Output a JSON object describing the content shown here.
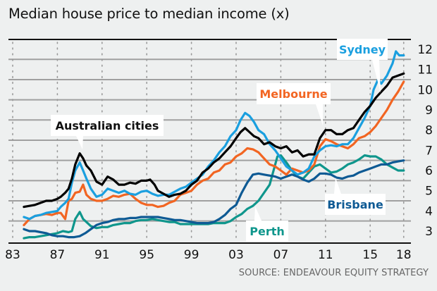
{
  "chart_data": {
    "type": "line",
    "title": "Median house price to median income (x)",
    "xlabel": "",
    "ylabel": "",
    "xlim": [
      1983,
      2018.5
    ],
    "ylim": [
      2.4,
      12.5
    ],
    "grid": true,
    "x_tick_labels": [
      {
        "value": 1983,
        "label": "83"
      },
      {
        "value": 1987,
        "label": "87"
      },
      {
        "value": 1991,
        "label": "91"
      },
      {
        "value": 1995,
        "label": "95"
      },
      {
        "value": 1999,
        "label": "99"
      },
      {
        "value": 2003,
        "label": "03"
      },
      {
        "value": 2007,
        "label": "07"
      },
      {
        "value": 2011,
        "label": "11"
      },
      {
        "value": 2015,
        "label": "15"
      },
      {
        "value": 2018,
        "label": "18"
      }
    ],
    "y_tick_labels": [
      "12",
      "11",
      "10",
      "9",
      "8",
      "7",
      "6",
      "5",
      "4",
      "3"
    ],
    "y_ticks": [
      12,
      11,
      10,
      9,
      8,
      7,
      6,
      5,
      4,
      3
    ],
    "series": [
      {
        "name": "Australian cities",
        "color": "#000000",
        "label_anchor_year": 1989.0,
        "x": [
          1984.0,
          1985.0,
          1985.5,
          1986.0,
          1986.5,
          1987.0,
          1987.3,
          1987.7,
          1988.0,
          1988.3,
          1988.6,
          1989.0,
          1989.3,
          1989.6,
          1990.0,
          1990.5,
          1991.0,
          1991.5,
          1992.0,
          1992.5,
          1993.0,
          1993.5,
          1994.0,
          1994.5,
          1995.0,
          1995.3,
          1995.7,
          1996.0,
          1996.5,
          1997.0,
          1997.5,
          1998.0,
          1998.5,
          1999.0,
          1999.5,
          2000.0,
          2000.5,
          2001.0,
          2001.5,
          2002.0,
          2002.5,
          2003.0,
          2003.4,
          2003.8,
          2004.2,
          2004.6,
          2005.0,
          2005.5,
          2006.0,
          2006.5,
          2007.0,
          2007.5,
          2008.0,
          2008.5,
          2009.0,
          2009.5,
          2010.0,
          2010.5,
          2011.0,
          2011.5,
          2012.0,
          2012.5,
          2013.0,
          2013.5,
          2014.0,
          2014.5,
          2015.0,
          2015.5,
          2016.0,
          2016.5,
          2017.0,
          2017.5,
          2018.0
        ],
        "values": [
          4.2,
          4.3,
          4.4,
          4.5,
          4.5,
          4.6,
          4.7,
          4.9,
          5.1,
          5.6,
          6.3,
          6.85,
          6.6,
          6.25,
          6.0,
          5.45,
          5.3,
          5.7,
          5.55,
          5.3,
          5.3,
          5.4,
          5.35,
          5.5,
          5.5,
          5.55,
          5.3,
          5.0,
          4.85,
          4.7,
          4.8,
          4.85,
          5.0,
          5.3,
          5.5,
          5.9,
          6.1,
          6.4,
          6.6,
          6.9,
          7.2,
          7.6,
          7.9,
          8.1,
          7.9,
          7.7,
          7.6,
          7.3,
          7.4,
          7.2,
          7.1,
          7.2,
          6.9,
          7.0,
          6.7,
          6.8,
          6.8,
          7.6,
          8.0,
          8.0,
          7.8,
          7.8,
          8.0,
          8.1,
          8.5,
          8.9,
          9.2,
          9.6,
          9.9,
          10.2,
          10.6,
          10.7,
          10.8
        ]
      },
      {
        "name": "Sydney",
        "color": "#1a9fdf",
        "label_anchor_year": 2015.6,
        "x": [
          1984.0,
          1984.5,
          1985.0,
          1985.5,
          1986.0,
          1986.5,
          1987.0,
          1987.3,
          1987.7,
          1988.0,
          1988.3,
          1988.6,
          1989.0,
          1989.3,
          1989.6,
          1990.0,
          1990.5,
          1991.0,
          1991.5,
          1992.0,
          1992.5,
          1993.0,
          1993.5,
          1994.0,
          1994.5,
          1995.0,
          1995.5,
          1996.0,
          1996.5,
          1997.0,
          1997.5,
          1998.0,
          1998.5,
          1999.0,
          1999.5,
          2000.0,
          2000.5,
          2001.0,
          2001.5,
          2002.0,
          2002.5,
          2003.0,
          2003.4,
          2003.8,
          2004.2,
          2004.6,
          2005.0,
          2005.5,
          2006.0,
          2006.5,
          2007.0,
          2007.5,
          2008.0,
          2008.5,
          2009.0,
          2009.5,
          2010.0,
          2010.5,
          2011.0,
          2011.5,
          2012.0,
          2012.5,
          2013.0,
          2013.5,
          2014.0,
          2014.5,
          2015.0,
          2015.3,
          2015.7,
          2016.0,
          2016.5,
          2017.0,
          2017.3,
          2017.6,
          2018.0
        ],
        "values": [
          3.7,
          3.6,
          3.75,
          3.8,
          3.9,
          3.95,
          4.0,
          4.2,
          4.4,
          4.6,
          5.4,
          6.0,
          6.4,
          6.0,
          5.6,
          5.1,
          4.7,
          4.8,
          5.1,
          5.0,
          4.9,
          5.0,
          4.85,
          4.8,
          4.95,
          5.0,
          4.85,
          4.75,
          4.8,
          4.8,
          4.95,
          5.1,
          5.2,
          5.4,
          5.6,
          5.8,
          6.2,
          6.5,
          6.9,
          7.2,
          7.7,
          8.0,
          8.5,
          8.85,
          8.7,
          8.4,
          8.0,
          7.8,
          7.3,
          7.0,
          6.6,
          6.2,
          6.0,
          5.8,
          5.9,
          6.1,
          6.7,
          7.0,
          7.2,
          7.25,
          7.2,
          7.3,
          7.3,
          7.6,
          8.1,
          8.6,
          9.2,
          10.0,
          10.5,
          10.3,
          10.7,
          11.3,
          11.9,
          11.7,
          11.7
        ]
      },
      {
        "name": "Melbourne",
        "color": "#f26522",
        "label_anchor_year": 2010.5,
        "x": [
          1984.0,
          1984.5,
          1985.0,
          1985.5,
          1986.0,
          1986.5,
          1987.0,
          1987.3,
          1987.7,
          1988.0,
          1988.3,
          1988.6,
          1989.0,
          1989.3,
          1989.6,
          1990.0,
          1990.5,
          1991.0,
          1991.5,
          1992.0,
          1992.5,
          1993.0,
          1993.5,
          1994.0,
          1994.5,
          1995.0,
          1995.5,
          1996.0,
          1996.5,
          1997.0,
          1997.5,
          1998.0,
          1998.5,
          1999.0,
          1999.5,
          2000.0,
          2000.5,
          2001.0,
          2001.5,
          2002.0,
          2002.5,
          2003.0,
          2003.5,
          2004.0,
          2004.5,
          2005.0,
          2005.5,
          2006.0,
          2006.5,
          2007.0,
          2007.5,
          2008.0,
          2008.5,
          2009.0,
          2009.5,
          2010.0,
          2010.5,
          2011.0,
          2011.5,
          2012.0,
          2012.5,
          2013.0,
          2013.5,
          2014.0,
          2014.5,
          2015.0,
          2015.5,
          2016.0,
          2016.5,
          2017.0,
          2017.5,
          2018.0
        ],
        "values": [
          3.3,
          3.6,
          3.75,
          3.8,
          3.85,
          3.8,
          3.9,
          3.9,
          3.6,
          4.5,
          4.6,
          4.9,
          4.95,
          5.3,
          4.8,
          4.6,
          4.5,
          4.5,
          4.6,
          4.75,
          4.7,
          4.8,
          4.85,
          4.6,
          4.4,
          4.3,
          4.3,
          4.2,
          4.25,
          4.4,
          4.5,
          4.8,
          4.9,
          5.0,
          5.3,
          5.5,
          5.6,
          5.9,
          6.0,
          6.3,
          6.4,
          6.7,
          6.85,
          7.1,
          7.05,
          6.9,
          6.6,
          6.3,
          6.2,
          6.0,
          5.8,
          6.1,
          6.0,
          5.9,
          6.0,
          6.3,
          7.2,
          7.55,
          7.45,
          7.3,
          7.2,
          7.1,
          7.3,
          7.6,
          7.7,
          7.9,
          8.2,
          8.6,
          9.0,
          9.5,
          9.9,
          10.4
        ]
      },
      {
        "name": "Brisbane",
        "color": "#0e5a94",
        "label_anchor_year": 2011.0,
        "x": [
          1984.0,
          1984.5,
          1985.0,
          1985.5,
          1986.0,
          1986.5,
          1987.0,
          1987.5,
          1988.0,
          1988.5,
          1989.0,
          1989.5,
          1990.0,
          1990.5,
          1991.0,
          1991.5,
          1992.0,
          1992.5,
          1993.0,
          1993.5,
          1994.0,
          1994.5,
          1995.0,
          1995.5,
          1996.0,
          1996.5,
          1997.0,
          1997.5,
          1998.0,
          1998.5,
          1999.0,
          1999.5,
          2000.0,
          2000.5,
          2001.0,
          2001.5,
          2002.0,
          2002.5,
          2003.0,
          2003.5,
          2004.0,
          2004.5,
          2005.0,
          2005.5,
          2006.0,
          2006.5,
          2007.0,
          2007.5,
          2008.0,
          2008.5,
          2009.0,
          2009.5,
          2010.0,
          2010.5,
          2011.0,
          2011.5,
          2012.0,
          2012.5,
          2013.0,
          2013.5,
          2014.0,
          2014.5,
          2015.0,
          2015.5,
          2016.0,
          2016.5,
          2017.0,
          2017.5,
          2018.0
        ],
        "values": [
          3.1,
          3.0,
          3.0,
          2.95,
          2.9,
          2.8,
          2.75,
          2.75,
          2.7,
          2.7,
          2.75,
          2.9,
          3.1,
          3.3,
          3.4,
          3.45,
          3.55,
          3.6,
          3.6,
          3.65,
          3.65,
          3.7,
          3.7,
          3.7,
          3.7,
          3.65,
          3.6,
          3.55,
          3.55,
          3.5,
          3.45,
          3.4,
          3.4,
          3.4,
          3.45,
          3.6,
          3.8,
          4.1,
          4.3,
          4.9,
          5.4,
          5.8,
          5.85,
          5.8,
          5.75,
          5.7,
          5.6,
          5.7,
          5.8,
          5.7,
          5.55,
          5.45,
          5.6,
          5.85,
          5.85,
          5.8,
          5.65,
          5.6,
          5.7,
          5.75,
          5.9,
          6.0,
          6.1,
          6.2,
          6.3,
          6.3,
          6.4,
          6.45,
          6.5
        ]
      },
      {
        "name": "Perth",
        "color": "#0f968c",
        "label_anchor_year": 2005.0,
        "x": [
          1984.0,
          1984.5,
          1985.0,
          1985.5,
          1986.0,
          1986.5,
          1987.0,
          1987.5,
          1988.0,
          1988.3,
          1988.6,
          1989.0,
          1989.3,
          1989.7,
          1990.0,
          1990.5,
          1991.0,
          1991.5,
          1992.0,
          1992.5,
          1993.0,
          1993.5,
          1994.0,
          1994.5,
          1995.0,
          1995.5,
          1996.0,
          1996.5,
          1997.0,
          1997.5,
          1998.0,
          1998.5,
          1999.0,
          1999.5,
          2000.0,
          2000.5,
          2001.0,
          2001.5,
          2002.0,
          2002.5,
          2003.0,
          2003.5,
          2004.0,
          2004.5,
          2005.0,
          2005.5,
          2006.0,
          2006.3,
          2006.7,
          2007.0,
          2007.5,
          2008.0,
          2008.5,
          2009.0,
          2009.5,
          2010.0,
          2010.5,
          2011.0,
          2011.5,
          2012.0,
          2012.5,
          2013.0,
          2013.5,
          2014.0,
          2014.5,
          2015.0,
          2015.5,
          2016.0,
          2016.5,
          2017.0,
          2017.5,
          2018.0
        ],
        "values": [
          2.65,
          2.7,
          2.7,
          2.75,
          2.8,
          2.85,
          2.9,
          3.0,
          2.95,
          3.0,
          3.6,
          3.95,
          3.6,
          3.4,
          3.25,
          3.15,
          3.2,
          3.2,
          3.3,
          3.35,
          3.4,
          3.4,
          3.5,
          3.55,
          3.55,
          3.6,
          3.55,
          3.5,
          3.45,
          3.45,
          3.35,
          3.35,
          3.35,
          3.35,
          3.35,
          3.35,
          3.4,
          3.4,
          3.4,
          3.5,
          3.7,
          3.85,
          4.1,
          4.25,
          4.5,
          4.9,
          5.3,
          5.9,
          6.7,
          6.75,
          6.4,
          6.0,
          5.7,
          5.6,
          5.9,
          6.2,
          6.3,
          6.1,
          5.9,
          5.95,
          6.1,
          6.3,
          6.4,
          6.55,
          6.75,
          6.7,
          6.7,
          6.55,
          6.3,
          6.15,
          6.0,
          6.0
        ]
      }
    ],
    "annotations": [
      {
        "text": "Australian cities",
        "series": "Australian cities"
      },
      {
        "text": "Sydney",
        "series": "Sydney"
      },
      {
        "text": "Melbourne",
        "series": "Melbourne"
      },
      {
        "text": "Brisbane",
        "series": "Brisbane"
      },
      {
        "text": "Perth",
        "series": "Perth"
      }
    ],
    "source": "SOURCE: ENDEAVOUR EQUITY STRATEGY"
  }
}
